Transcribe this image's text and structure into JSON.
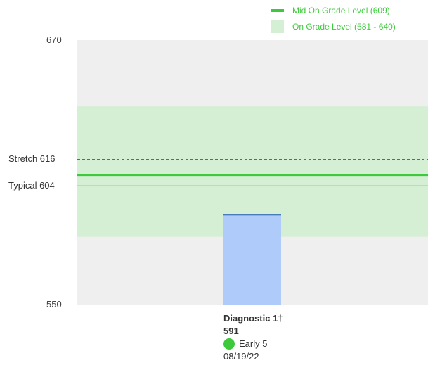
{
  "legend": {
    "mid_label": "Mid On Grade Level (609)",
    "band_label": "On Grade Level (581 - 640)"
  },
  "axis": {
    "top_label": "670",
    "bottom_label": "550"
  },
  "reference_lines": {
    "stretch_label": "Stretch 616",
    "typical_label": "Typical 604"
  },
  "bar_caption": {
    "name": "Diagnostic 1†",
    "score": "591",
    "placement": "Early 5",
    "date": "08/19/22"
  },
  "colors": {
    "plot_bg": "#efefef",
    "band": "#d4efd4",
    "mid_line": "#3cc93c",
    "typical_line": "#333333",
    "stretch_line": "#555555",
    "bar": "#aecbfa",
    "bar_top": "#1a56b0",
    "placement_dot": "#3cc93c",
    "legend_text": "#3ecb3e"
  },
  "chart_data": {
    "type": "bar",
    "categories": [
      "Diagnostic 1†"
    ],
    "values": [
      591
    ],
    "ylim": [
      550,
      670
    ],
    "y_tick_labels": [
      "670",
      "550"
    ],
    "bands": [
      {
        "label": "On Grade Level (581 - 640)",
        "from": 581,
        "to": 640
      }
    ],
    "reference_lines": [
      {
        "label": "Mid On Grade Level (609)",
        "value": 609,
        "style": "solid-green"
      },
      {
        "label": "Stretch 616",
        "value": 616,
        "style": "dashed"
      },
      {
        "label": "Typical 604",
        "value": 604,
        "style": "solid"
      }
    ],
    "legend_position": "top-right",
    "grid": false
  }
}
